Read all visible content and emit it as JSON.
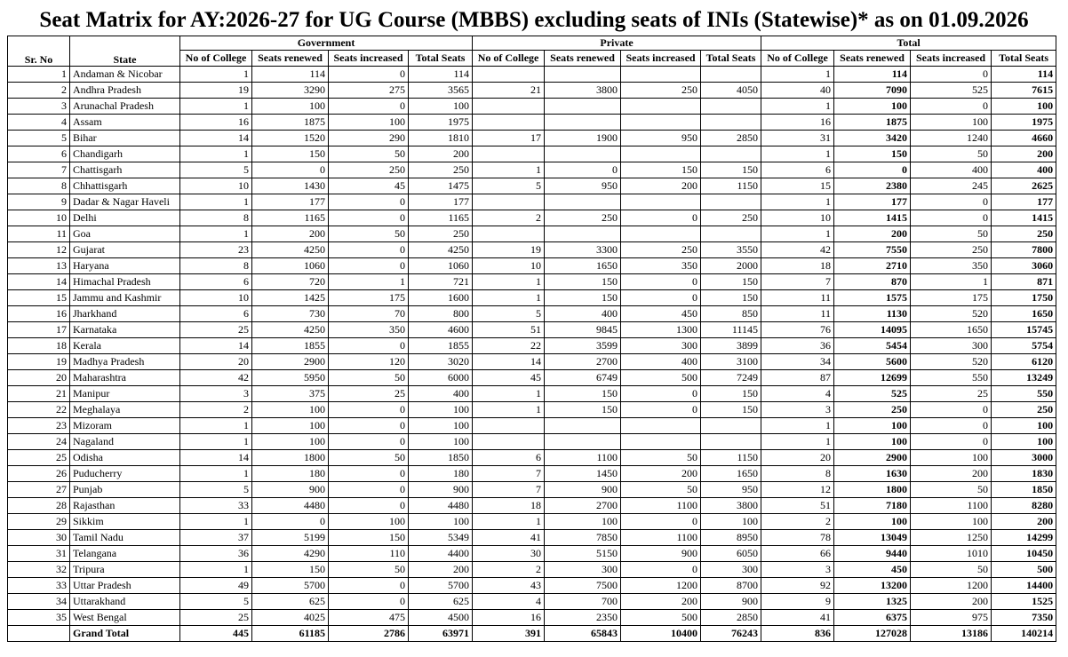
{
  "title": "Seat Matrix for AY:2026-27 for UG Course (MBBS) excluding seats of INIs (Statewise)* as on 01.09.2026",
  "headers": {
    "sr_no": "Sr. No",
    "state": "State",
    "groups": [
      "Government",
      "Private",
      "Total"
    ],
    "sub": [
      "No of College",
      "Seats renewed",
      "Seats increased",
      "Total Seats"
    ]
  },
  "rows": [
    [
      "1",
      "Andaman & Nicobar",
      "1",
      "114",
      "0",
      "114",
      "",
      "",
      "",
      "",
      "1",
      "114",
      "0",
      "114"
    ],
    [
      "2",
      "Andhra Pradesh",
      "19",
      "3290",
      "275",
      "3565",
      "21",
      "3800",
      "250",
      "4050",
      "40",
      "7090",
      "525",
      "7615"
    ],
    [
      "3",
      "Arunachal Pradesh",
      "1",
      "100",
      "0",
      "100",
      "",
      "",
      "",
      "",
      "1",
      "100",
      "0",
      "100"
    ],
    [
      "4",
      "Assam",
      "16",
      "1875",
      "100",
      "1975",
      "",
      "",
      "",
      "",
      "16",
      "1875",
      "100",
      "1975"
    ],
    [
      "5",
      "Bihar",
      "14",
      "1520",
      "290",
      "1810",
      "17",
      "1900",
      "950",
      "2850",
      "31",
      "3420",
      "1240",
      "4660"
    ],
    [
      "6",
      "Chandigarh",
      "1",
      "150",
      "50",
      "200",
      "",
      "",
      "",
      "",
      "1",
      "150",
      "50",
      "200"
    ],
    [
      "7",
      "Chattisgarh",
      "5",
      "0",
      "250",
      "250",
      "1",
      "0",
      "150",
      "150",
      "6",
      "0",
      "400",
      "400"
    ],
    [
      "8",
      "Chhattisgarh",
      "10",
      "1430",
      "45",
      "1475",
      "5",
      "950",
      "200",
      "1150",
      "15",
      "2380",
      "245",
      "2625"
    ],
    [
      "9",
      "Dadar & Nagar Haveli",
      "1",
      "177",
      "0",
      "177",
      "",
      "",
      "",
      "",
      "1",
      "177",
      "0",
      "177"
    ],
    [
      "10",
      "Delhi",
      "8",
      "1165",
      "0",
      "1165",
      "2",
      "250",
      "0",
      "250",
      "10",
      "1415",
      "0",
      "1415"
    ],
    [
      "11",
      "Goa",
      "1",
      "200",
      "50",
      "250",
      "",
      "",
      "",
      "",
      "1",
      "200",
      "50",
      "250"
    ],
    [
      "12",
      "Gujarat",
      "23",
      "4250",
      "0",
      "4250",
      "19",
      "3300",
      "250",
      "3550",
      "42",
      "7550",
      "250",
      "7800"
    ],
    [
      "13",
      "Haryana",
      "8",
      "1060",
      "0",
      "1060",
      "10",
      "1650",
      "350",
      "2000",
      "18",
      "2710",
      "350",
      "3060"
    ],
    [
      "14",
      "Himachal Pradesh",
      "6",
      "720",
      "1",
      "721",
      "1",
      "150",
      "0",
      "150",
      "7",
      "870",
      "1",
      "871"
    ],
    [
      "15",
      "Jammu and Kashmir",
      "10",
      "1425",
      "175",
      "1600",
      "1",
      "150",
      "0",
      "150",
      "11",
      "1575",
      "175",
      "1750"
    ],
    [
      "16",
      "Jharkhand",
      "6",
      "730",
      "70",
      "800",
      "5",
      "400",
      "450",
      "850",
      "11",
      "1130",
      "520",
      "1650"
    ],
    [
      "17",
      "Karnataka",
      "25",
      "4250",
      "350",
      "4600",
      "51",
      "9845",
      "1300",
      "11145",
      "76",
      "14095",
      "1650",
      "15745"
    ],
    [
      "18",
      "Kerala",
      "14",
      "1855",
      "0",
      "1855",
      "22",
      "3599",
      "300",
      "3899",
      "36",
      "5454",
      "300",
      "5754"
    ],
    [
      "19",
      "Madhya Pradesh",
      "20",
      "2900",
      "120",
      "3020",
      "14",
      "2700",
      "400",
      "3100",
      "34",
      "5600",
      "520",
      "6120"
    ],
    [
      "20",
      "Maharashtra",
      "42",
      "5950",
      "50",
      "6000",
      "45",
      "6749",
      "500",
      "7249",
      "87",
      "12699",
      "550",
      "13249"
    ],
    [
      "21",
      "Manipur",
      "3",
      "375",
      "25",
      "400",
      "1",
      "150",
      "0",
      "150",
      "4",
      "525",
      "25",
      "550"
    ],
    [
      "22",
      "Meghalaya",
      "2",
      "100",
      "0",
      "100",
      "1",
      "150",
      "0",
      "150",
      "3",
      "250",
      "0",
      "250"
    ],
    [
      "23",
      "Mizoram",
      "1",
      "100",
      "0",
      "100",
      "",
      "",
      "",
      "",
      "1",
      "100",
      "0",
      "100"
    ],
    [
      "24",
      "Nagaland",
      "1",
      "100",
      "0",
      "100",
      "",
      "",
      "",
      "",
      "1",
      "100",
      "0",
      "100"
    ],
    [
      "25",
      "Odisha",
      "14",
      "1800",
      "50",
      "1850",
      "6",
      "1100",
      "50",
      "1150",
      "20",
      "2900",
      "100",
      "3000"
    ],
    [
      "26",
      "Puducherry",
      "1",
      "180",
      "0",
      "180",
      "7",
      "1450",
      "200",
      "1650",
      "8",
      "1630",
      "200",
      "1830"
    ],
    [
      "27",
      "Punjab",
      "5",
      "900",
      "0",
      "900",
      "7",
      "900",
      "50",
      "950",
      "12",
      "1800",
      "50",
      "1850"
    ],
    [
      "28",
      "Rajasthan",
      "33",
      "4480",
      "0",
      "4480",
      "18",
      "2700",
      "1100",
      "3800",
      "51",
      "7180",
      "1100",
      "8280"
    ],
    [
      "29",
      "Sikkim",
      "1",
      "0",
      "100",
      "100",
      "1",
      "100",
      "0",
      "100",
      "2",
      "100",
      "100",
      "200"
    ],
    [
      "30",
      "Tamil Nadu",
      "37",
      "5199",
      "150",
      "5349",
      "41",
      "7850",
      "1100",
      "8950",
      "78",
      "13049",
      "1250",
      "14299"
    ],
    [
      "31",
      "Telangana",
      "36",
      "4290",
      "110",
      "4400",
      "30",
      "5150",
      "900",
      "6050",
      "66",
      "9440",
      "1010",
      "10450"
    ],
    [
      "32",
      "Tripura",
      "1",
      "150",
      "50",
      "200",
      "2",
      "300",
      "0",
      "300",
      "3",
      "450",
      "50",
      "500"
    ],
    [
      "33",
      "Uttar Pradesh",
      "49",
      "5700",
      "0",
      "5700",
      "43",
      "7500",
      "1200",
      "8700",
      "92",
      "13200",
      "1200",
      "14400"
    ],
    [
      "34",
      "Uttarakhand",
      "5",
      "625",
      "0",
      "625",
      "4",
      "700",
      "200",
      "900",
      "9",
      "1325",
      "200",
      "1525"
    ],
    [
      "35",
      "West Bengal",
      "25",
      "4025",
      "475",
      "4500",
      "16",
      "2350",
      "500",
      "2850",
      "41",
      "6375",
      "975",
      "7350"
    ]
  ],
  "grand_total": {
    "label": "Grand Total",
    "values": [
      "445",
      "61185",
      "2786",
      "63971",
      "391",
      "65843",
      "10400",
      "76243",
      "836",
      "127028",
      "13186",
      "140214"
    ]
  }
}
